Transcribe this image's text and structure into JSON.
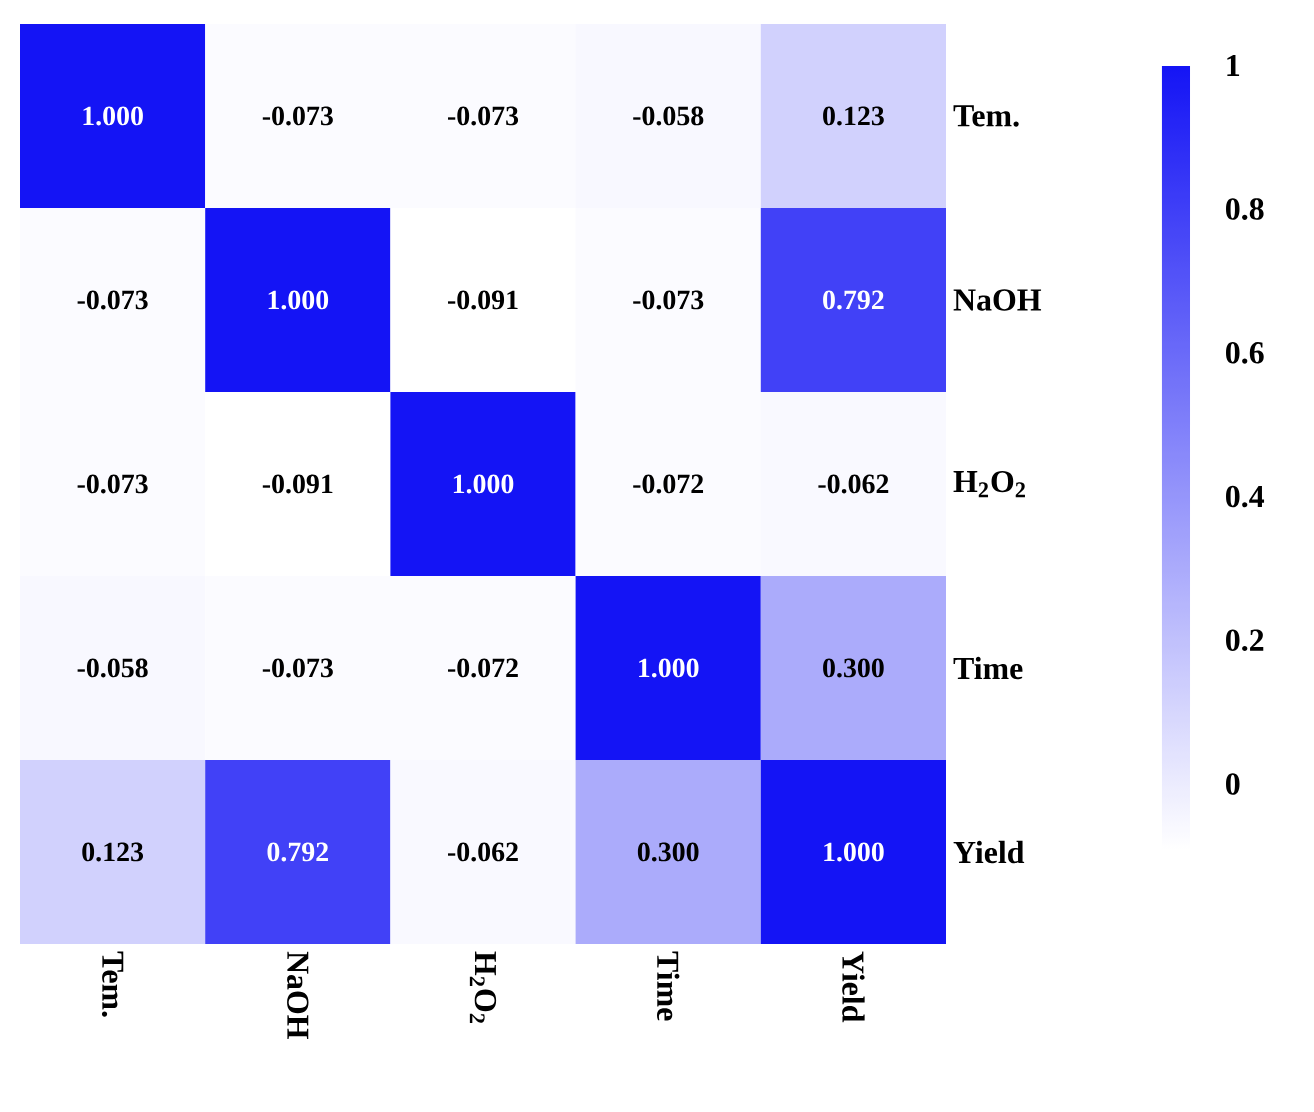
{
  "chart_data": {
    "type": "heatmap",
    "categories": [
      "Tem.",
      "NaOH",
      "H$_{2}$O$_{2}$",
      "Time",
      "Yield"
    ],
    "y_categories": [
      "Tem.",
      "NaOH",
      "H$_{2}$O$_{2}$",
      "Time",
      "Yield"
    ],
    "cells": [
      [
        1.0,
        -0.073,
        -0.073,
        -0.058,
        0.123
      ],
      [
        -0.073,
        1.0,
        -0.091,
        -0.073,
        0.792
      ],
      [
        -0.073,
        -0.091,
        1.0,
        -0.072,
        -0.062
      ],
      [
        -0.058,
        -0.073,
        -0.072,
        1.0,
        0.3
      ],
      [
        0.123,
        0.792,
        -0.062,
        0.3,
        1.0
      ]
    ],
    "cell_labels": [
      [
        "1.000",
        "-0.073",
        "-0.073",
        "-0.058",
        "0.123"
      ],
      [
        "-0.073",
        "1.000",
        "-0.091",
        "-0.073",
        "0.792"
      ],
      [
        "-0.073",
        "-0.091",
        "1.000",
        "-0.072",
        "-0.062"
      ],
      [
        "-0.058",
        "-0.073",
        "-0.072",
        "1.000",
        "0.300"
      ],
      [
        "0.123",
        "0.792",
        "-0.062",
        "0.300",
        "1.000"
      ]
    ],
    "color": "#1414f5",
    "clim": [
      -0.091,
      1
    ],
    "cticks": [
      0,
      0.2,
      0.4,
      0.6,
      0.8,
      1
    ]
  }
}
